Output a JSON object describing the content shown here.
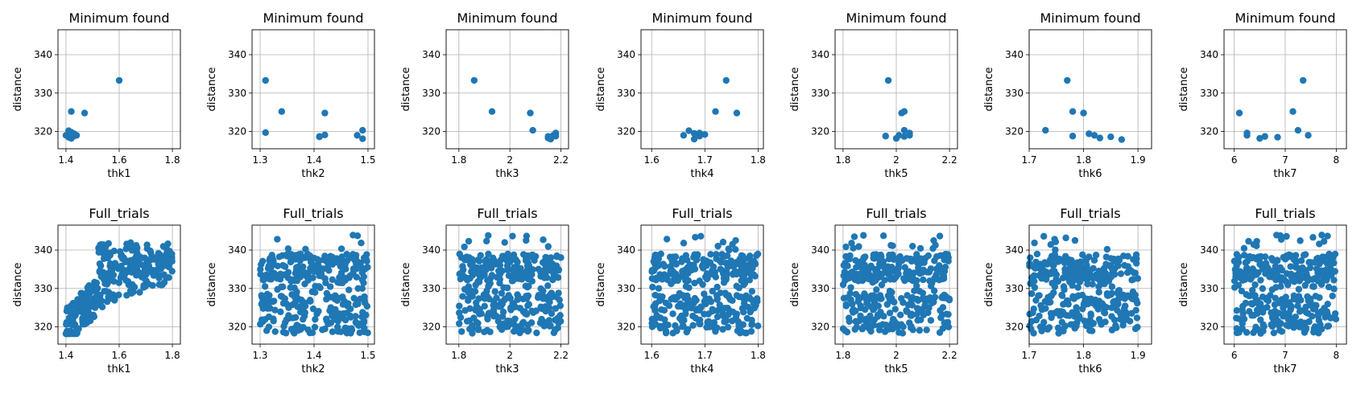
{
  "chart_data": [
    {
      "type": "scatter",
      "title": "Minimum found",
      "xlabel": "thk1",
      "ylabel": "distance",
      "xlim": [
        1.37,
        1.83
      ],
      "ylim": [
        315.5,
        346.5
      ],
      "xticks": [
        1.4,
        1.6,
        1.8
      ],
      "yticks": [
        320,
        330,
        340
      ],
      "grid": true,
      "color": "#1f77b4",
      "x": [
        1.4,
        1.41,
        1.42,
        1.43,
        1.42,
        1.44,
        1.41,
        1.43,
        1.47,
        1.42,
        1.42,
        1.6
      ],
      "y": [
        319.0,
        318.5,
        319.8,
        319.4,
        318.2,
        319.0,
        320.2,
        318.8,
        324.8,
        325.2,
        319.5,
        333.3
      ]
    },
    {
      "type": "scatter",
      "title": "Minimum found",
      "xlabel": "thk2",
      "ylabel": "distance",
      "xlim": [
        1.285,
        1.512
      ],
      "ylim": [
        315.5,
        346.5
      ],
      "xticks": [
        1.3,
        1.4,
        1.5
      ],
      "yticks": [
        320,
        330,
        340
      ],
      "grid": true,
      "color": "#1f77b4",
      "x": [
        1.31,
        1.31,
        1.34,
        1.41,
        1.42,
        1.42,
        1.41,
        1.48,
        1.49,
        1.49
      ],
      "y": [
        333.3,
        319.7,
        325.2,
        318.7,
        324.8,
        319.1,
        318.6,
        319.0,
        318.1,
        320.3
      ]
    },
    {
      "type": "scatter",
      "title": "Minimum found",
      "xlabel": "thk3",
      "ylabel": "distance",
      "xlim": [
        1.75,
        2.23
      ],
      "ylim": [
        315.5,
        346.5
      ],
      "xticks": [
        1.8,
        2.0,
        2.2
      ],
      "yticks": [
        320,
        330,
        340
      ],
      "grid": true,
      "color": "#1f77b4",
      "x": [
        1.86,
        1.93,
        2.08,
        2.09,
        2.15,
        2.16,
        2.17,
        2.18,
        2.18,
        2.15
      ],
      "y": [
        333.3,
        325.2,
        324.8,
        320.3,
        318.3,
        318.0,
        319.0,
        319.6,
        318.8,
        318.7
      ]
    },
    {
      "type": "scatter",
      "title": "Minimum found",
      "xlabel": "thk4",
      "ylabel": "distance",
      "xlim": [
        1.58,
        1.81
      ],
      "ylim": [
        315.5,
        346.5
      ],
      "xticks": [
        1.6,
        1.7,
        1.8
      ],
      "yticks": [
        320,
        330,
        340
      ],
      "grid": true,
      "color": "#1f77b4",
      "x": [
        1.66,
        1.67,
        1.68,
        1.69,
        1.69,
        1.7,
        1.72,
        1.74,
        1.76,
        1.68
      ],
      "y": [
        319.0,
        320.2,
        318.0,
        319.6,
        318.8,
        319.2,
        325.2,
        333.3,
        324.8,
        319.5
      ]
    },
    {
      "type": "scatter",
      "title": "Minimum found",
      "xlabel": "thk5",
      "ylabel": "distance",
      "xlim": [
        1.77,
        2.23
      ],
      "ylim": [
        315.5,
        346.5
      ],
      "xticks": [
        1.8,
        2.0,
        2.2
      ],
      "yticks": [
        320,
        330,
        340
      ],
      "grid": true,
      "color": "#1f77b4",
      "x": [
        1.96,
        1.97,
        2.0,
        2.01,
        2.02,
        2.03,
        2.03,
        2.05,
        2.05,
        2.03
      ],
      "y": [
        318.8,
        333.3,
        318.2,
        319.0,
        324.8,
        325.2,
        320.3,
        319.6,
        319.0,
        318.7
      ]
    },
    {
      "type": "scatter",
      "title": "Minimum found",
      "xlabel": "thk6",
      "ylabel": "distance",
      "xlim": [
        1.7,
        1.925
      ],
      "ylim": [
        315.5,
        346.5
      ],
      "xticks": [
        1.7,
        1.8,
        1.9
      ],
      "yticks": [
        320,
        330,
        340
      ],
      "grid": true,
      "color": "#1f77b4",
      "x": [
        1.73,
        1.77,
        1.78,
        1.78,
        1.8,
        1.81,
        1.82,
        1.83,
        1.85,
        1.87
      ],
      "y": [
        320.3,
        333.3,
        325.2,
        318.8,
        324.8,
        319.4,
        319.0,
        318.3,
        318.6,
        317.9
      ]
    },
    {
      "type": "scatter",
      "title": "Minimum found",
      "xlabel": "thk7",
      "ylabel": "distance",
      "xlim": [
        5.8,
        8.2
      ],
      "ylim": [
        315.5,
        346.5
      ],
      "xticks": [
        6,
        7,
        8
      ],
      "yticks": [
        320,
        330,
        340
      ],
      "grid": true,
      "color": "#1f77b4",
      "x": [
        6.1,
        6.25,
        6.5,
        6.6,
        6.85,
        7.15,
        7.25,
        7.35,
        7.45,
        6.25
      ],
      "y": [
        324.8,
        319.0,
        318.2,
        318.7,
        318.5,
        325.2,
        320.3,
        333.3,
        319.0,
        319.6
      ]
    },
    {
      "type": "scatter",
      "title": "Full_trials",
      "xlabel": "thk1",
      "ylabel": "distance",
      "xlim": [
        1.37,
        1.83
      ],
      "ylim": [
        315.5,
        346.5
      ],
      "xticks": [
        1.4,
        1.6,
        1.8
      ],
      "yticks": [
        320,
        330,
        340
      ],
      "grid": true,
      "color": "#1f77b4",
      "pattern": "trend",
      "n": 340
    },
    {
      "type": "scatter",
      "title": "Full_trials",
      "xlabel": "thk2",
      "ylabel": "distance",
      "xlim": [
        1.285,
        1.512
      ],
      "ylim": [
        315.5,
        346.5
      ],
      "xticks": [
        1.3,
        1.4,
        1.5
      ],
      "yticks": [
        320,
        330,
        340
      ],
      "grid": true,
      "color": "#1f77b4",
      "pattern": "band",
      "n": 360
    },
    {
      "type": "scatter",
      "title": "Full_trials",
      "xlabel": "thk3",
      "ylabel": "distance",
      "xlim": [
        1.75,
        2.23
      ],
      "ylim": [
        315.5,
        346.5
      ],
      "xticks": [
        1.8,
        2.0,
        2.2
      ],
      "yticks": [
        320,
        330,
        340
      ],
      "grid": true,
      "color": "#1f77b4",
      "pattern": "band",
      "n": 360
    },
    {
      "type": "scatter",
      "title": "Full_trials",
      "xlabel": "thk4",
      "ylabel": "distance",
      "xlim": [
        1.58,
        1.81
      ],
      "ylim": [
        315.5,
        346.5
      ],
      "xticks": [
        1.6,
        1.7,
        1.8
      ],
      "yticks": [
        320,
        330,
        340
      ],
      "grid": true,
      "color": "#1f77b4",
      "pattern": "band",
      "n": 360
    },
    {
      "type": "scatter",
      "title": "Full_trials",
      "xlabel": "thk5",
      "ylabel": "distance",
      "xlim": [
        1.77,
        2.23
      ],
      "ylim": [
        315.5,
        346.5
      ],
      "xticks": [
        1.8,
        2.0,
        2.2
      ],
      "yticks": [
        320,
        330,
        340
      ],
      "grid": true,
      "color": "#1f77b4",
      "pattern": "band",
      "n": 360
    },
    {
      "type": "scatter",
      "title": "Full_trials",
      "xlabel": "thk6",
      "ylabel": "distance",
      "xlim": [
        1.7,
        1.925
      ],
      "ylim": [
        315.5,
        346.5
      ],
      "xticks": [
        1.7,
        1.8,
        1.9
      ],
      "yticks": [
        320,
        330,
        340
      ],
      "grid": true,
      "color": "#1f77b4",
      "pattern": "band",
      "n": 360
    },
    {
      "type": "scatter",
      "title": "Full_trials",
      "xlabel": "thk7",
      "ylabel": "distance",
      "xlim": [
        5.8,
        8.2
      ],
      "ylim": [
        315.5,
        346.5
      ],
      "xticks": [
        6,
        7,
        8
      ],
      "yticks": [
        320,
        330,
        340
      ],
      "grid": true,
      "color": "#1f77b4",
      "pattern": "band",
      "n": 360
    }
  ]
}
